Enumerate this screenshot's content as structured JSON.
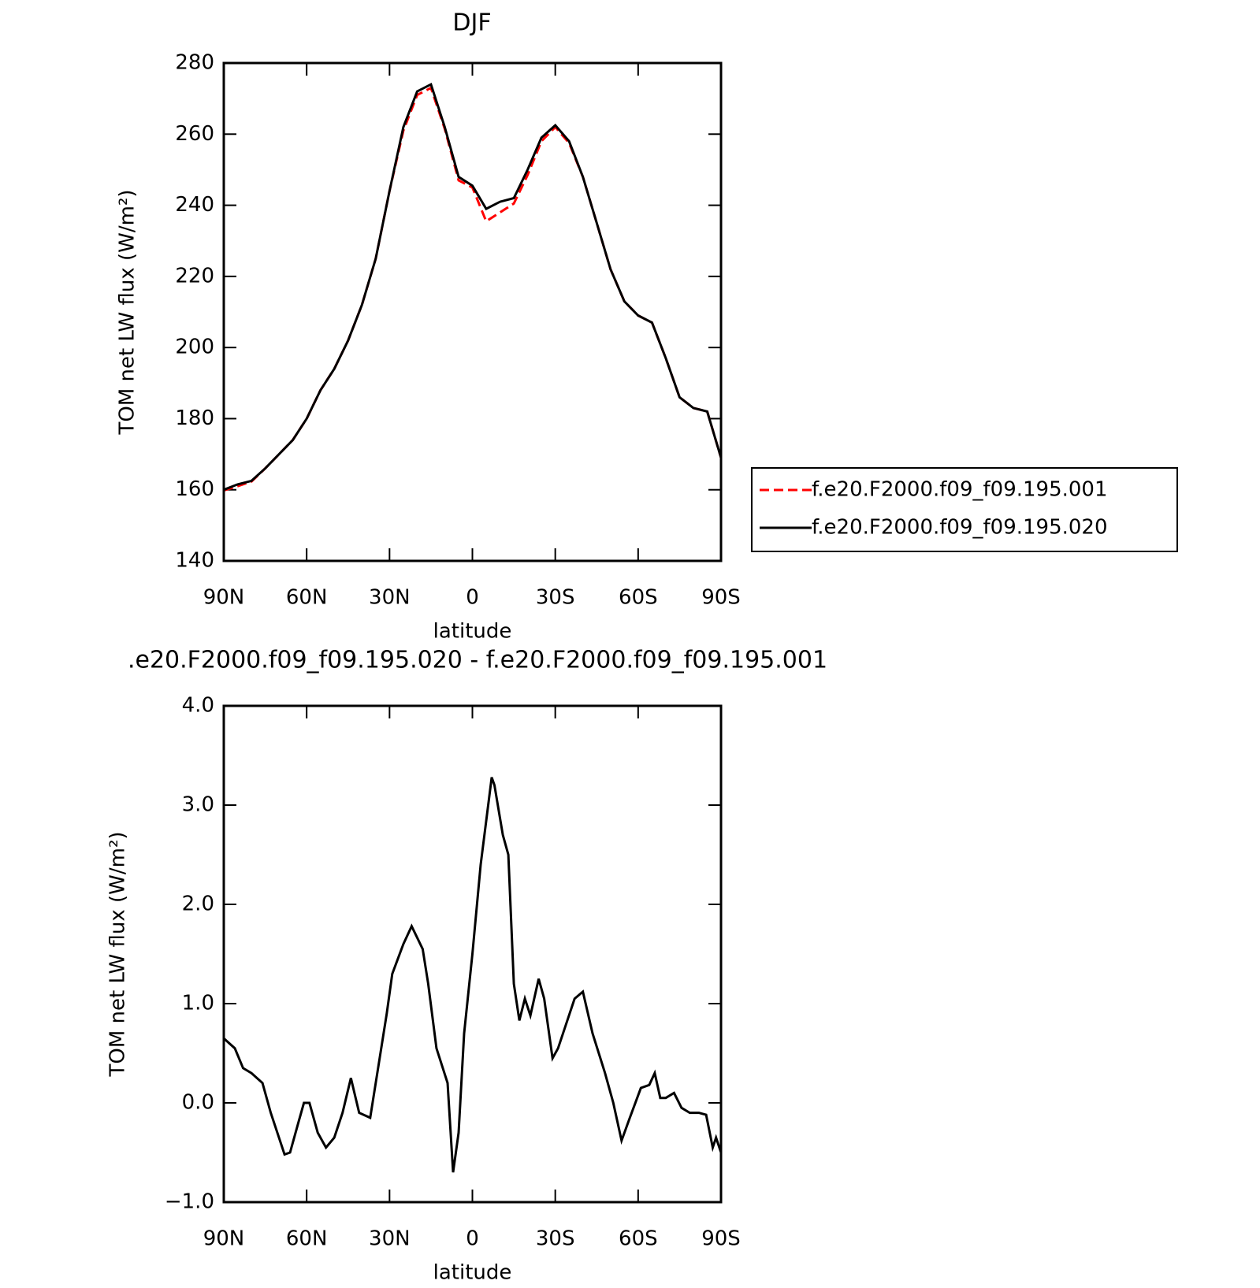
{
  "chart_data": [
    {
      "type": "line",
      "title": "DJF",
      "ylabel": "TOM net LW flux (W/m²)",
      "xlabel": "latitude",
      "xlim": [
        90,
        -90
      ],
      "xticks": [
        {
          "value": 90,
          "label": "90N"
        },
        {
          "value": 60,
          "label": "60N"
        },
        {
          "value": 30,
          "label": "30N"
        },
        0,
        {
          "value": -30,
          "label": "30S"
        },
        {
          "value": -60,
          "label": "60S"
        },
        {
          "value": -90,
          "label": "90S"
        }
      ],
      "ylim": [
        140,
        280
      ],
      "yticks": [
        140,
        160,
        180,
        200,
        220,
        240,
        260,
        280
      ],
      "legend": "right",
      "x": [
        90,
        85,
        80,
        75,
        70,
        65,
        60,
        55,
        50,
        45,
        40,
        35,
        30,
        25,
        20,
        15,
        10,
        5,
        0,
        -5,
        -10,
        -15,
        -20,
        -25,
        -30,
        -35,
        -40,
        -45,
        -50,
        -55,
        -60,
        -65,
        -70,
        -75,
        -80,
        -85,
        -90
      ],
      "series": [
        {
          "name": "f.e20.F2000.f09_f09.195.001",
          "color": "#ff0000",
          "line_style": "dashed",
          "values": [
            159.8,
            161,
            162.3,
            166,
            170,
            174,
            180,
            188,
            194,
            202,
            212,
            225,
            244,
            261,
            271,
            273,
            261.5,
            247,
            245,
            235.5,
            238,
            240.5,
            248.5,
            258,
            262,
            257.5,
            248,
            235,
            222,
            213,
            209,
            207,
            197,
            186,
            183,
            182,
            169
          ]
        },
        {
          "name": "f.e20.F2000.f09_f09.195.020",
          "color": "#000000",
          "line_style": "solid",
          "values": [
            160,
            161.5,
            162.5,
            166,
            170,
            174,
            180,
            188,
            194,
            202,
            212,
            225,
            244,
            262,
            272,
            274,
            262,
            248,
            245.5,
            239,
            241,
            242,
            250,
            259,
            262.5,
            258,
            248,
            235,
            222,
            213,
            209,
            207,
            197,
            186,
            183,
            182,
            169
          ]
        }
      ]
    },
    {
      "type": "line",
      "title": ".e20.F2000.f09_f09.195.020 - f.e20.F2000.f09_f09.195.001",
      "ylabel": "TOM net LW flux (W/m²)",
      "xlabel": "latitude",
      "xlim": [
        90,
        -90
      ],
      "xticks": [
        {
          "value": 90,
          "label": "90N"
        },
        {
          "value": 60,
          "label": "60N"
        },
        {
          "value": 30,
          "label": "30N"
        },
        0,
        {
          "value": -30,
          "label": "30S"
        },
        {
          "value": -60,
          "label": "60S"
        },
        {
          "value": -90,
          "label": "90S"
        }
      ],
      "ylim": [
        -1,
        4
      ],
      "yticks": [
        {
          "value": -1,
          "label": "−1.0"
        },
        {
          "value": 0,
          "label": "0.0"
        },
        {
          "value": 1,
          "label": "1.0"
        },
        {
          "value": 2,
          "label": "2.0"
        },
        {
          "value": 3,
          "label": "3.0"
        },
        {
          "value": 4,
          "label": "4.0"
        }
      ],
      "x": [
        90,
        86,
        83,
        80,
        76,
        73,
        68,
        66,
        63,
        61,
        59,
        56,
        53,
        50,
        47,
        44,
        41,
        37,
        35,
        31,
        29,
        25,
        22,
        18,
        16,
        13,
        9,
        7,
        5,
        3,
        0,
        -3,
        -7,
        -8,
        -11,
        -13,
        -15,
        -17,
        -19,
        -21,
        -24,
        -26,
        -29,
        -31,
        -34,
        -37,
        -40,
        -43.5,
        -48,
        -51,
        -54,
        -57,
        -61,
        -64,
        -66,
        -68,
        -70,
        -73,
        -75.7,
        -78.7,
        -82,
        -84.6,
        -87,
        -88.2,
        -90
      ],
      "series": [
        {
          "color": "#000000",
          "line_style": "solid",
          "values": [
            0.65,
            0.55,
            0.35,
            0.3,
            0.2,
            -0.1,
            -0.52,
            -0.5,
            -0.2,
            0.0,
            0.0,
            -0.3,
            -0.45,
            -0.35,
            -0.1,
            0.25,
            -0.1,
            -0.15,
            0.2,
            0.9,
            1.3,
            1.6,
            1.78,
            1.55,
            1.2,
            0.55,
            0.2,
            -0.7,
            -0.3,
            0.7,
            1.5,
            2.4,
            3.28,
            3.2,
            2.7,
            2.5,
            1.2,
            0.83,
            1.05,
            0.88,
            1.25,
            1.05,
            0.45,
            0.55,
            0.8,
            1.05,
            1.12,
            0.7,
            0.3,
            0.0,
            -0.38,
            -0.15,
            0.15,
            0.18,
            0.3,
            0.05,
            0.05,
            0.1,
            -0.05,
            -0.1,
            -0.1,
            -0.12,
            -0.45,
            -0.35,
            -0.5
          ]
        }
      ]
    }
  ]
}
